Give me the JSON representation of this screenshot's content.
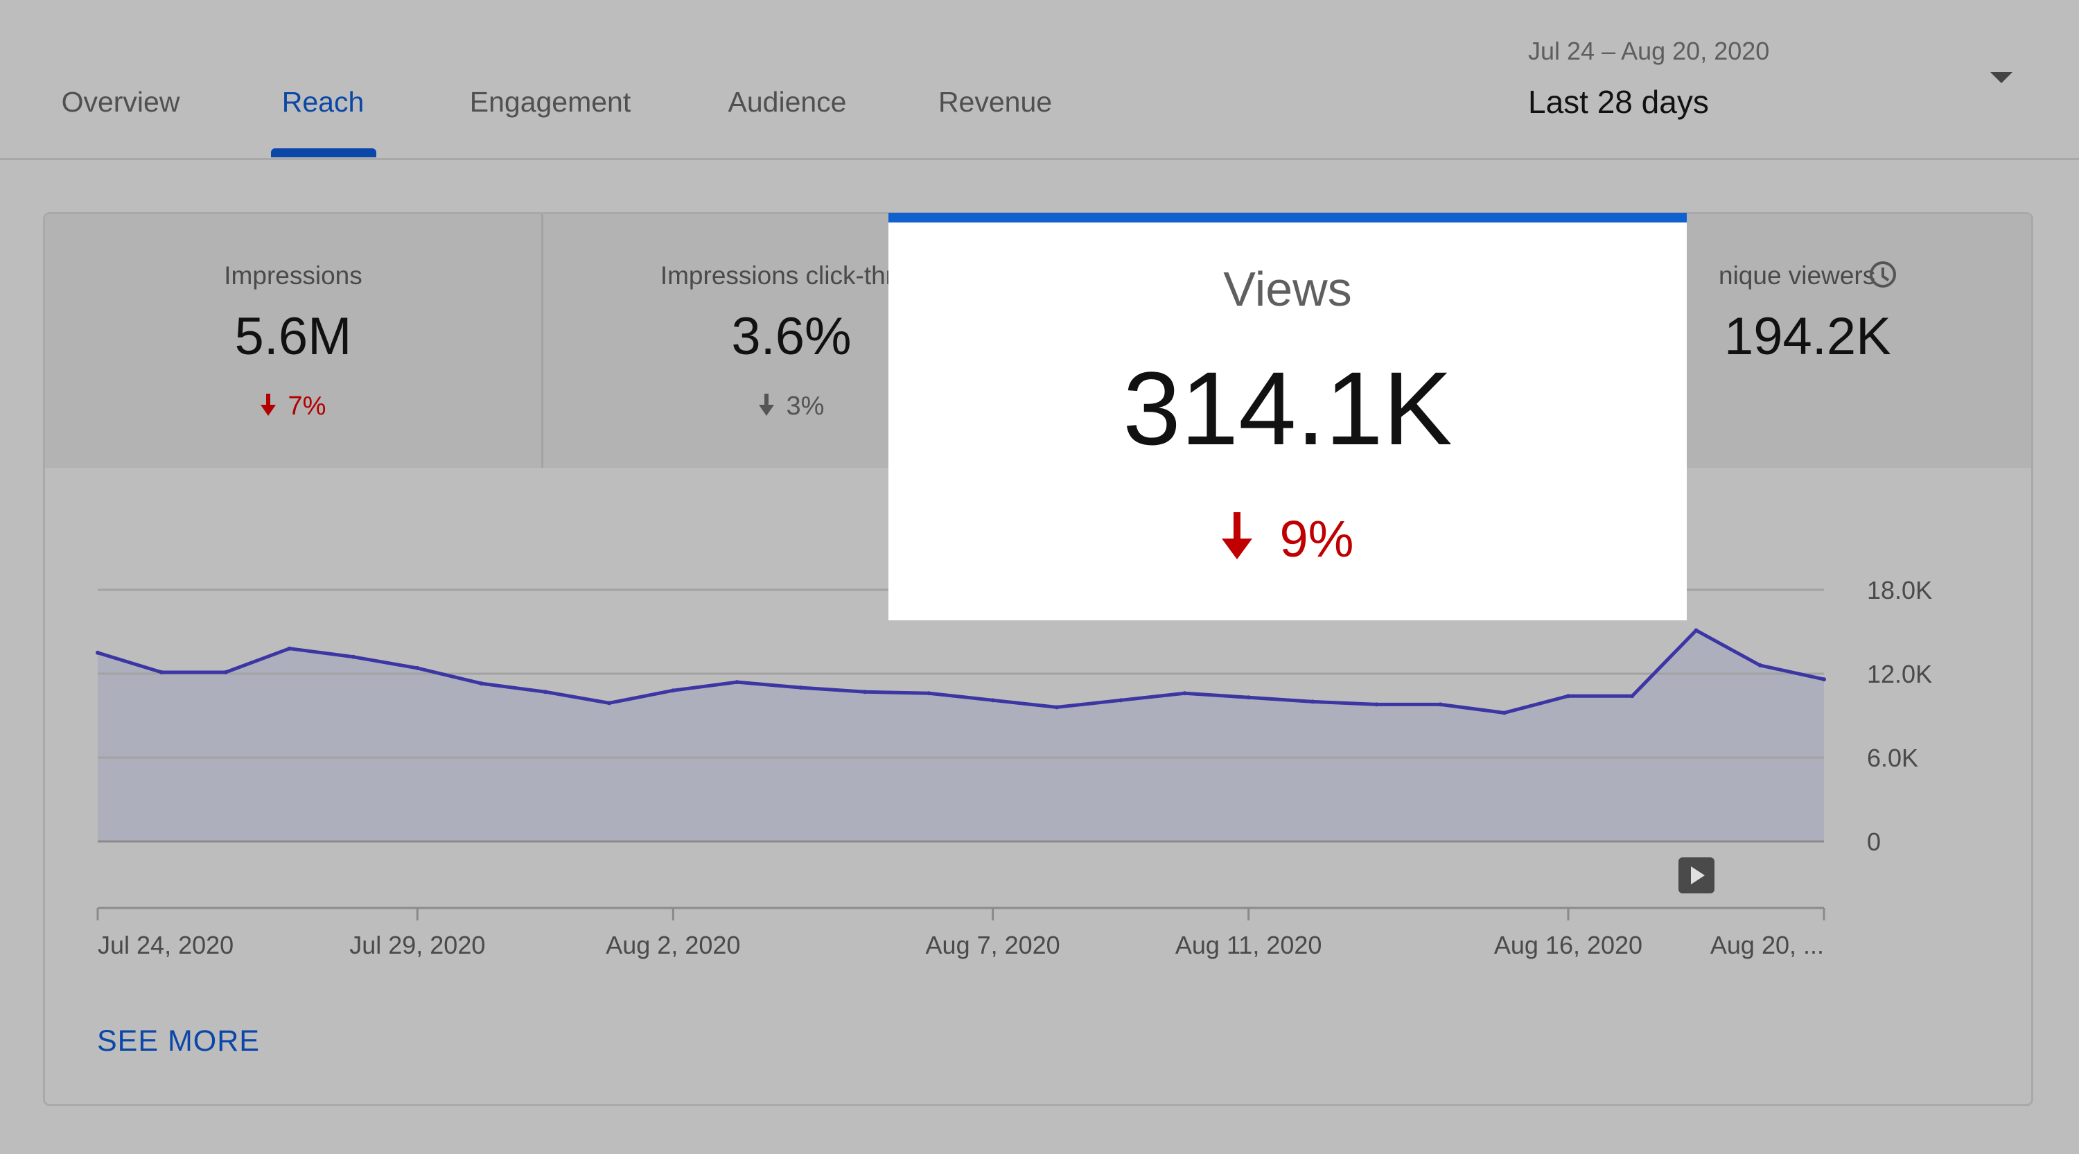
{
  "tabs": [
    {
      "label": "Overview",
      "active": false
    },
    {
      "label": "Reach",
      "active": true
    },
    {
      "label": "Engagement",
      "active": false
    },
    {
      "label": "Audience",
      "active": false
    },
    {
      "label": "Revenue",
      "active": false
    }
  ],
  "date_range": {
    "range_text": "Jul 24 – Aug 20, 2020",
    "preset_label": "Last 28 days",
    "dropdown_icon": "caret-down-icon"
  },
  "metrics": [
    {
      "label": "Impressions",
      "value": "5.6M",
      "delta": "7%",
      "delta_direction": "down",
      "delta_color": "#b30000"
    },
    {
      "label": "Impressions click-throu",
      "value": "3.6%",
      "delta": "3%",
      "delta_direction": "down",
      "delta_color": "#555555"
    },
    {
      "label": "nique viewers",
      "value": "194.2K",
      "info_icon": "clock-icon"
    }
  ],
  "highlight": {
    "title": "Views",
    "value": "314.1K",
    "delta": "9%",
    "delta_direction": "down",
    "delta_color": "#c00000",
    "accent_color": "#1160d0"
  },
  "see_more_label": "SEE MORE",
  "play_icon": "play-icon",
  "chart_data": {
    "type": "area",
    "y_tick_labels": [
      "18.0K",
      "12.0K",
      "6.0K",
      "0"
    ],
    "x_tick_labels": [
      "Jul 24, 2020",
      "Jul 29, 2020",
      "Aug 2, 2020",
      "Aug 7, 2020",
      "Aug 11, 2020",
      "Aug 16, 2020",
      "Aug 20, ..."
    ],
    "ylim": [
      0,
      18000
    ],
    "grid": true,
    "line_color": "#3b36a3",
    "fill_color": "#aeafbd",
    "x": [
      "Jul 24",
      "Jul 25",
      "Jul 26",
      "Jul 27",
      "Jul 28",
      "Jul 29",
      "Jul 30",
      "Jul 31",
      "Aug 1",
      "Aug 2",
      "Aug 3",
      "Aug 4",
      "Aug 5",
      "Aug 6",
      "Aug 7",
      "Aug 8",
      "Aug 9",
      "Aug 10",
      "Aug 11",
      "Aug 12",
      "Aug 13",
      "Aug 14",
      "Aug 15",
      "Aug 16",
      "Aug 17",
      "Aug 18",
      "Aug 19",
      "Aug 20"
    ],
    "values": [
      13500,
      12100,
      12100,
      13800,
      13200,
      12400,
      11300,
      10700,
      9900,
      10800,
      11400,
      11000,
      10700,
      10600,
      10100,
      9600,
      10100,
      10600,
      10300,
      10000,
      9800,
      9800,
      9200,
      10400,
      10400,
      15100,
      12600,
      11600
    ]
  }
}
